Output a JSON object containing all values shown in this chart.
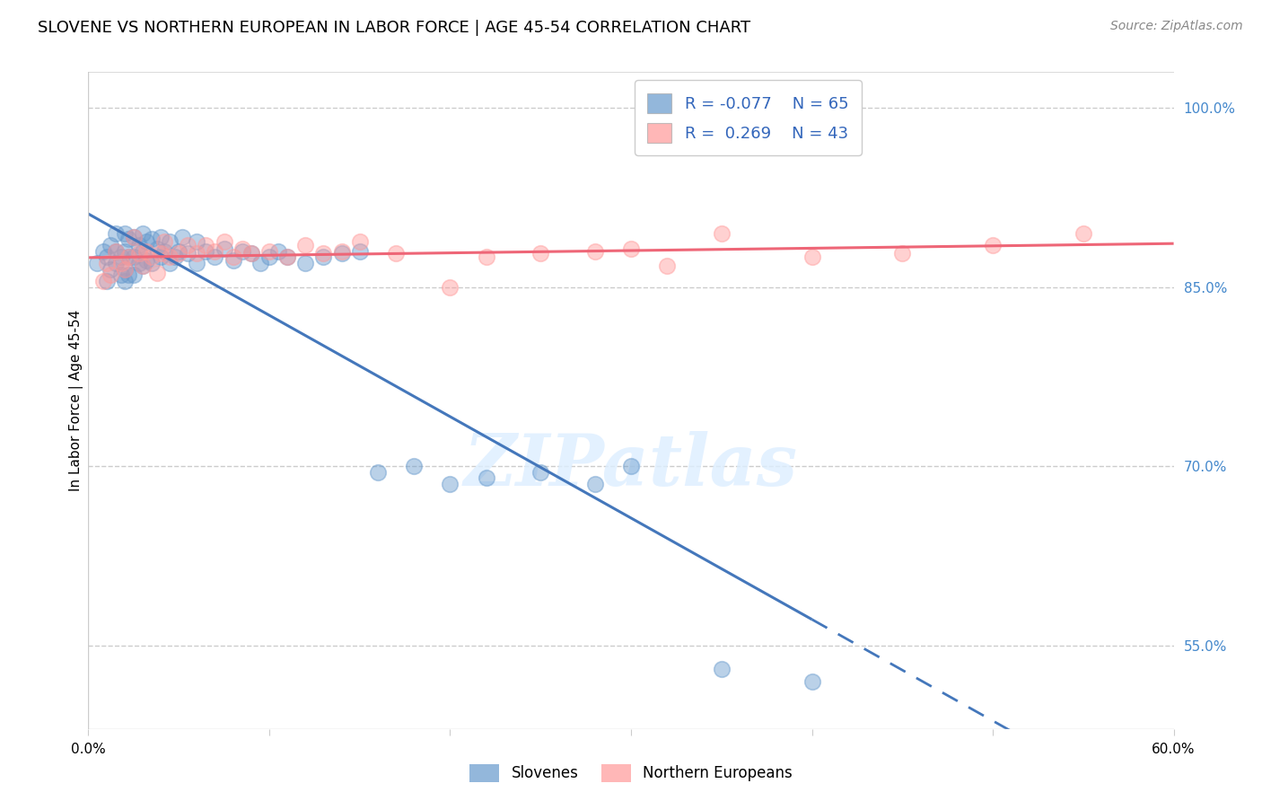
{
  "title": "SLOVENE VS NORTHERN EUROPEAN IN LABOR FORCE | AGE 45-54 CORRELATION CHART",
  "source": "Source: ZipAtlas.com",
  "ylabel": "In Labor Force | Age 45-54",
  "xlim": [
    0.0,
    0.6
  ],
  "ylim": [
    0.48,
    1.03
  ],
  "xticks": [
    0.0,
    0.1,
    0.2,
    0.3,
    0.4,
    0.5,
    0.6
  ],
  "xtick_labels": [
    "0.0%",
    "",
    "",
    "",
    "",
    "",
    "60.0%"
  ],
  "ytick_labels_right": [
    "55.0%",
    "70.0%",
    "85.0%",
    "100.0%"
  ],
  "ytick_values_right": [
    0.55,
    0.7,
    0.85,
    1.0
  ],
  "watermark": "ZIPatlas",
  "blue_color": "#6699CC",
  "pink_color": "#FF9999",
  "blue_line_color": "#4477BB",
  "pink_line_color": "#EE6677",
  "legend_R_blue": "-0.077",
  "legend_N_blue": "65",
  "legend_R_pink": "0.269",
  "legend_N_pink": "43",
  "blue_scatter_x": [
    0.005,
    0.008,
    0.01,
    0.01,
    0.012,
    0.012,
    0.015,
    0.015,
    0.015,
    0.018,
    0.018,
    0.02,
    0.02,
    0.02,
    0.02,
    0.022,
    0.022,
    0.022,
    0.025,
    0.025,
    0.025,
    0.028,
    0.028,
    0.03,
    0.03,
    0.03,
    0.032,
    0.032,
    0.035,
    0.035,
    0.038,
    0.04,
    0.04,
    0.042,
    0.045,
    0.045,
    0.048,
    0.05,
    0.052,
    0.055,
    0.06,
    0.06,
    0.065,
    0.07,
    0.075,
    0.08,
    0.085,
    0.09,
    0.095,
    0.1,
    0.105,
    0.11,
    0.12,
    0.13,
    0.14,
    0.15,
    0.16,
    0.18,
    0.2,
    0.22,
    0.25,
    0.28,
    0.3,
    0.35,
    0.4
  ],
  "blue_scatter_y": [
    0.87,
    0.88,
    0.855,
    0.875,
    0.865,
    0.885,
    0.87,
    0.88,
    0.895,
    0.86,
    0.875,
    0.855,
    0.865,
    0.88,
    0.895,
    0.86,
    0.875,
    0.89,
    0.86,
    0.875,
    0.892,
    0.87,
    0.885,
    0.868,
    0.88,
    0.895,
    0.872,
    0.888,
    0.87,
    0.89,
    0.882,
    0.875,
    0.892,
    0.88,
    0.87,
    0.888,
    0.875,
    0.88,
    0.892,
    0.878,
    0.87,
    0.888,
    0.88,
    0.875,
    0.882,
    0.872,
    0.88,
    0.878,
    0.87,
    0.875,
    0.88,
    0.875,
    0.87,
    0.875,
    0.878,
    0.88,
    0.695,
    0.7,
    0.685,
    0.69,
    0.695,
    0.685,
    0.7,
    0.53,
    0.52
  ],
  "pink_scatter_x": [
    0.008,
    0.01,
    0.012,
    0.015,
    0.018,
    0.02,
    0.022,
    0.025,
    0.028,
    0.03,
    0.032,
    0.035,
    0.038,
    0.04,
    0.042,
    0.045,
    0.05,
    0.055,
    0.06,
    0.065,
    0.07,
    0.075,
    0.08,
    0.085,
    0.09,
    0.1,
    0.11,
    0.12,
    0.13,
    0.14,
    0.15,
    0.17,
    0.2,
    0.22,
    0.25,
    0.28,
    0.3,
    0.32,
    0.35,
    0.4,
    0.45,
    0.5,
    0.55
  ],
  "pink_scatter_y": [
    0.855,
    0.87,
    0.86,
    0.88,
    0.87,
    0.865,
    0.875,
    0.892,
    0.878,
    0.868,
    0.88,
    0.875,
    0.862,
    0.878,
    0.888,
    0.875,
    0.878,
    0.885,
    0.878,
    0.885,
    0.88,
    0.888,
    0.875,
    0.882,
    0.878,
    0.88,
    0.875,
    0.885,
    0.878,
    0.88,
    0.888,
    0.878,
    0.85,
    0.875,
    0.878,
    0.88,
    0.882,
    0.868,
    0.895,
    0.875,
    0.878,
    0.885,
    0.895
  ],
  "grid_color": "#CCCCCC",
  "background_color": "#FFFFFF",
  "title_fontsize": 13,
  "axis_label_fontsize": 11,
  "tick_fontsize": 11,
  "source_fontsize": 10
}
